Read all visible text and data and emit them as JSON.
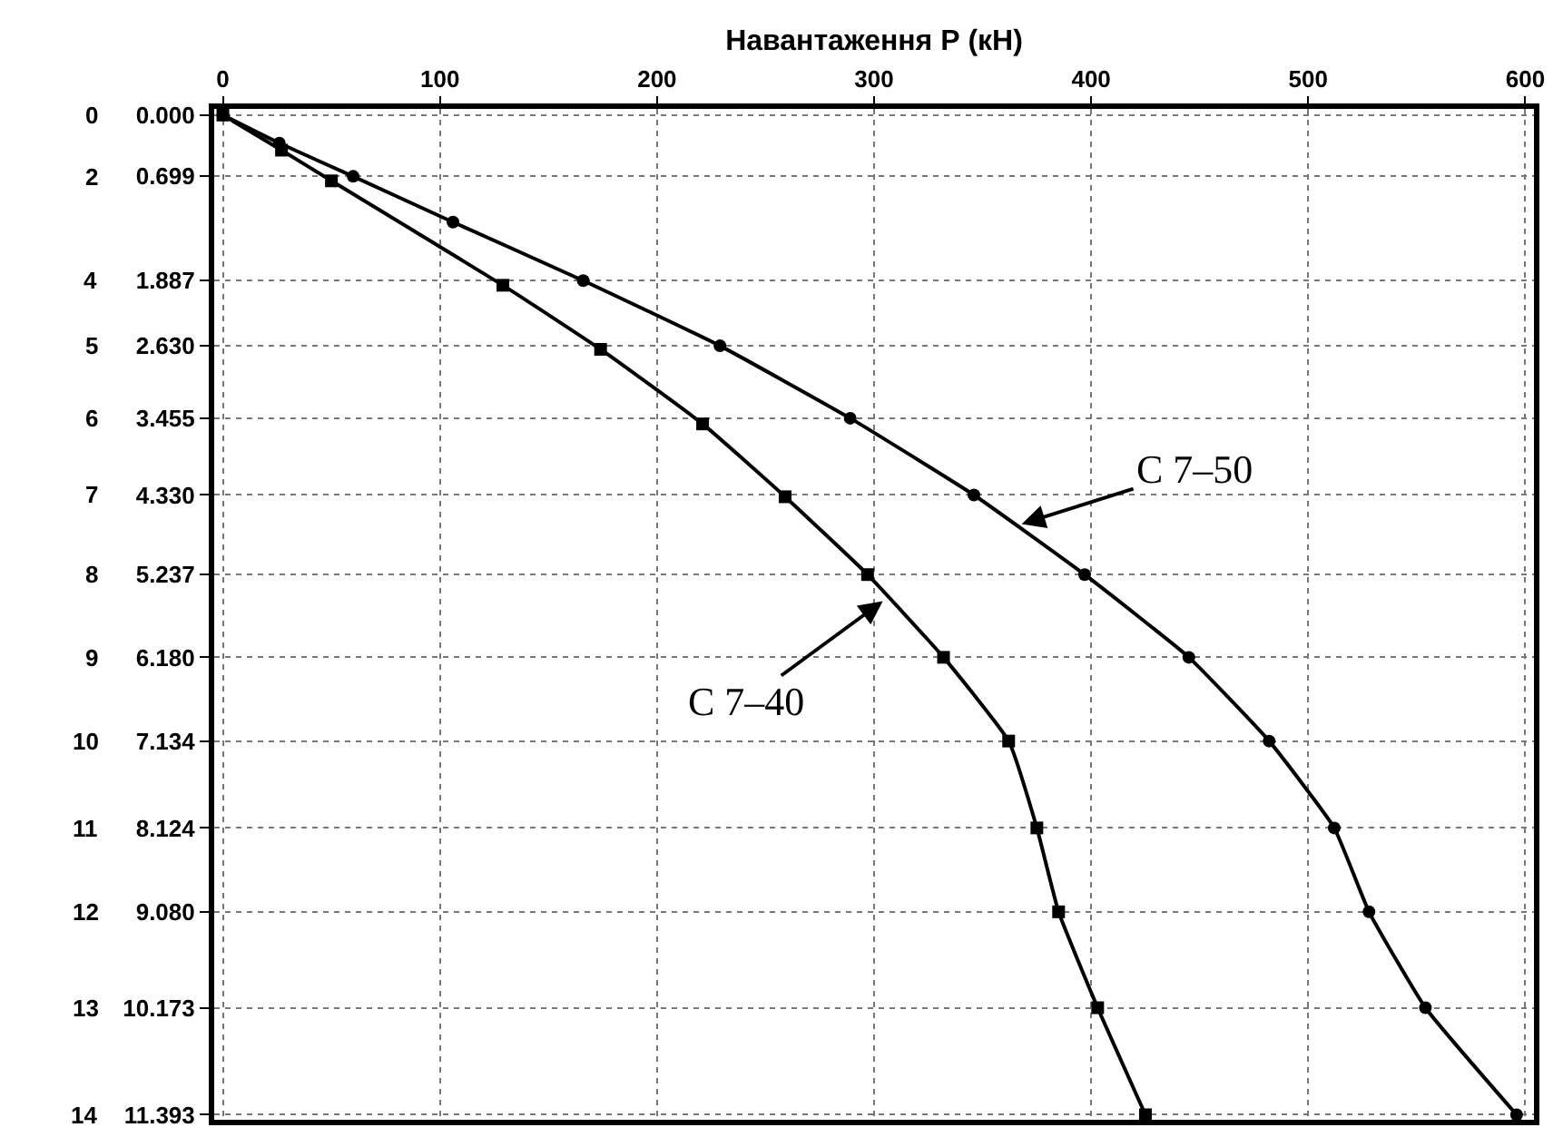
{
  "chart_data": {
    "type": "line",
    "xlabel": "Навантаження Р (кН)",
    "legend": false,
    "grid": true,
    "line_style": "solid",
    "xlim": [
      -4,
      604
    ],
    "xticks": [
      0,
      100,
      200,
      300,
      400,
      500,
      600
    ],
    "ylim": [
      11.45,
      -0.07
    ],
    "yticks": [
      {
        "value": 0,
        "label": "0.000"
      },
      {
        "value": 0.699,
        "label": "0.699"
      },
      {
        "value": 1.887,
        "label": "1.887"
      },
      {
        "value": 2.63,
        "label": "2.630"
      },
      {
        "value": 3.455,
        "label": "3.455"
      },
      {
        "value": 4.33,
        "label": "4.330"
      },
      {
        "value": 5.237,
        "label": "5.237"
      },
      {
        "value": 6.18,
        "label": "6.180"
      },
      {
        "value": 7.134,
        "label": "7.134"
      },
      {
        "value": 8.124,
        "label": "8.124"
      },
      {
        "value": 9.08,
        "label": "9.080"
      },
      {
        "value": 10.173,
        "label": "10.173"
      },
      {
        "value": 11.393,
        "label": "11.393"
      }
    ],
    "series": [
      {
        "color": "#000000",
        "marker": "square",
        "x": [
          0,
          27,
          50,
          129,
          174,
          221,
          259,
          297,
          332,
          362,
          375,
          385,
          403,
          425
        ],
        "values": [
          0,
          0.4,
          0.75,
          1.94,
          2.67,
          3.52,
          4.35,
          5.237,
          6.18,
          7.134,
          8.124,
          9.08,
          10.173,
          11.393
        ]
      },
      {
        "color": "#000000",
        "marker": "circle",
        "x": [
          0,
          26,
          60,
          106,
          166,
          229,
          289,
          346,
          397,
          445,
          482,
          512,
          528,
          554,
          596
        ],
        "values": [
          0,
          0.32,
          0.699,
          1.22,
          1.887,
          2.63,
          3.455,
          4.33,
          5.237,
          6.18,
          7.134,
          8.124,
          9.08,
          10.173,
          11.393
        ]
      }
    ],
    "annotations": [
      {
        "text": "C 7–50",
        "x": 368,
        "y": 4.66
      },
      {
        "text": "C 7–40",
        "x": 304,
        "y": 5.54
      },
      "0",
      "2",
      "4",
      "5",
      "6",
      "7",
      "8",
      "9",
      "10",
      "11",
      "12",
      "13",
      "14"
    ]
  }
}
